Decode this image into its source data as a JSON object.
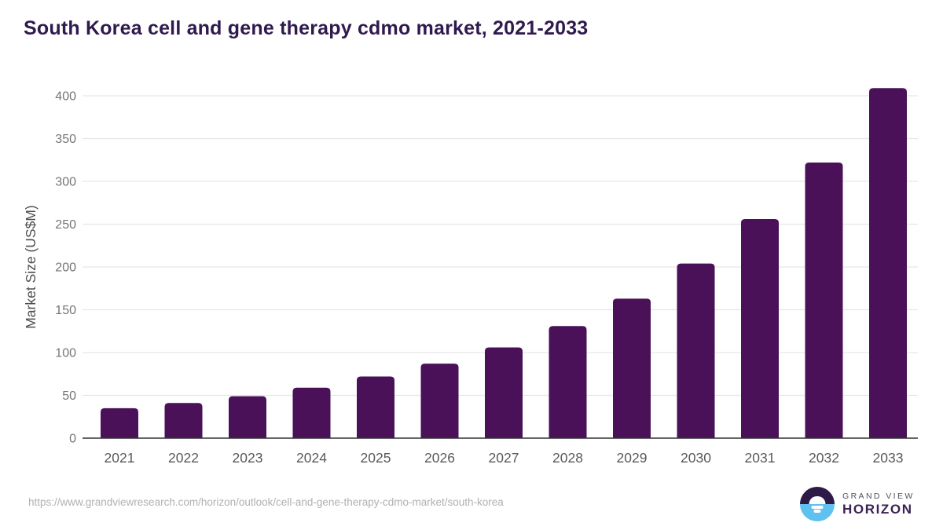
{
  "header": {
    "title": "South Korea cell and gene therapy cdmo market, 2021-2033"
  },
  "chart_data": {
    "type": "bar",
    "title": "South Korea cell and gene therapy cdmo market, 2021-2033",
    "categories": [
      "2021",
      "2022",
      "2023",
      "2024",
      "2025",
      "2026",
      "2027",
      "2028",
      "2029",
      "2030",
      "2031",
      "2032",
      "2033"
    ],
    "values": [
      35,
      41,
      49,
      59,
      72,
      87,
      106,
      131,
      163,
      204,
      256,
      322,
      409
    ],
    "xlabel": "",
    "ylabel": "Market Size (US$M)",
    "ylim": [
      0,
      400
    ],
    "yticks": [
      0,
      50,
      100,
      150,
      200,
      250,
      300,
      350,
      400
    ],
    "grid": true,
    "legend_position": "none",
    "bar_color": "#4a1158",
    "grid_color": "#e6e6e6",
    "axis_line_color": "#333333",
    "ytick_label_color": "#757575",
    "xtick_label_color": "#595959",
    "ylabel_color": "#4d4d4d"
  },
  "footer": {
    "source_url": "https://www.grandviewresearch.com/horizon/outlook/cell-and-gene-therapy-cdmo-market/south-korea",
    "logo_line1": "GRAND VIEW",
    "logo_line2": "HORIZON"
  },
  "colors": {
    "background": "#ffffff",
    "title": "#2f1a4e",
    "logo_dark": "#2e1a47",
    "logo_blue": "#5ec1ef"
  }
}
